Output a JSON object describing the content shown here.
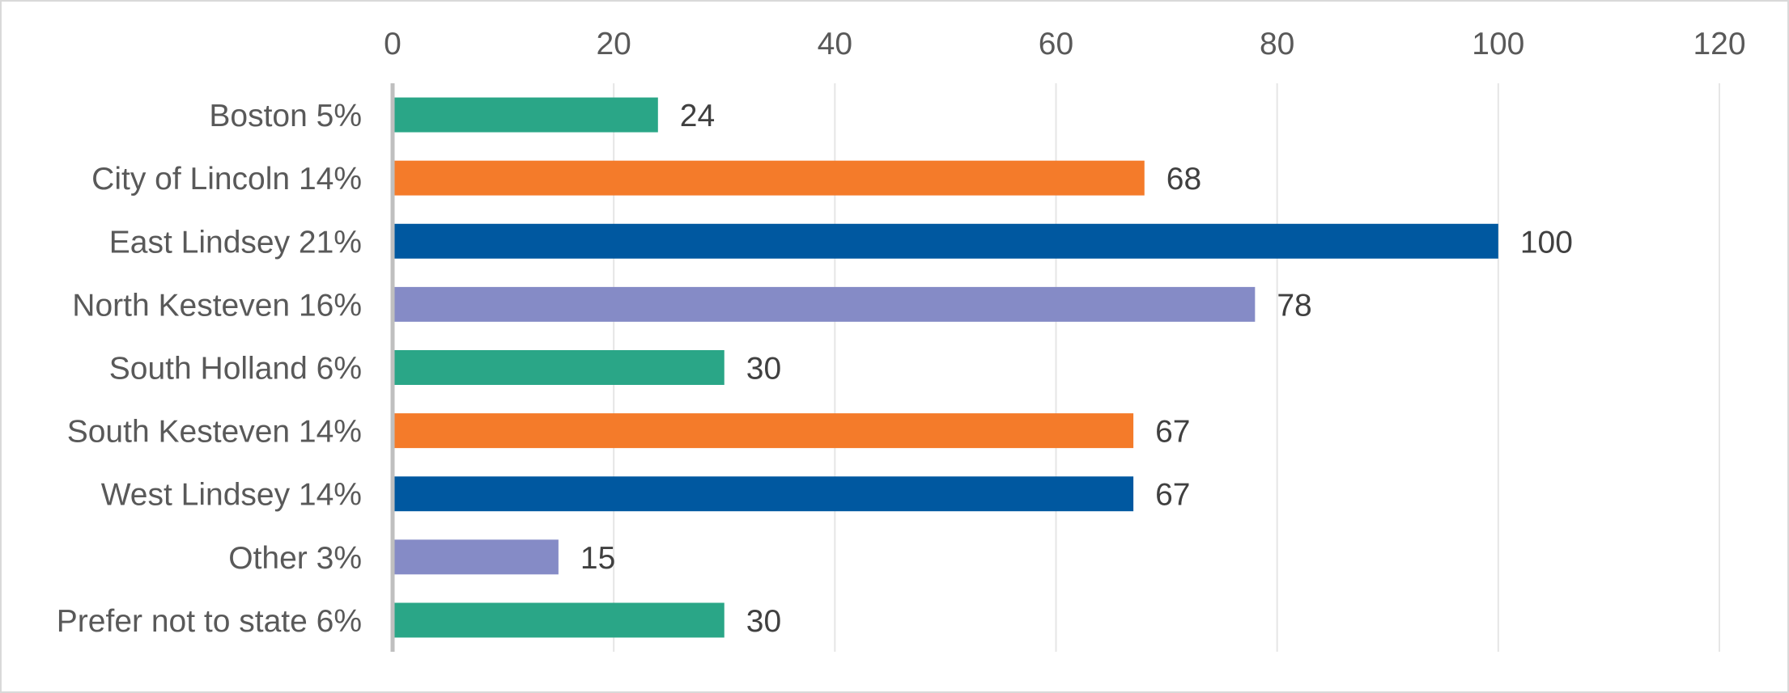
{
  "chart_data": {
    "type": "bar",
    "orientation": "horizontal",
    "title": "",
    "xlabel": "",
    "ylabel": "",
    "categories": [
      "Boston 5%",
      "City of Lincoln 14%",
      "East Lindsey 21%",
      "North Kesteven 16%",
      "South Holland 6%",
      "South Kesteven 14%",
      "West Lindsey 14%",
      "Other 3%",
      "Prefer not to state 6%"
    ],
    "values": [
      24,
      68,
      100,
      78,
      30,
      67,
      67,
      15,
      30
    ],
    "colors": [
      "#2aa687",
      "#f47b2a",
      "#0058a0",
      "#858bc6",
      "#2aa687",
      "#f47b2a",
      "#0058a0",
      "#858bc6",
      "#2aa687"
    ],
    "xlim": [
      0,
      120
    ],
    "x_ticks": [
      0,
      20,
      40,
      60,
      80,
      100,
      120
    ],
    "x_axis_position": "top",
    "grid": true,
    "legend": "none",
    "data_labels": true
  }
}
